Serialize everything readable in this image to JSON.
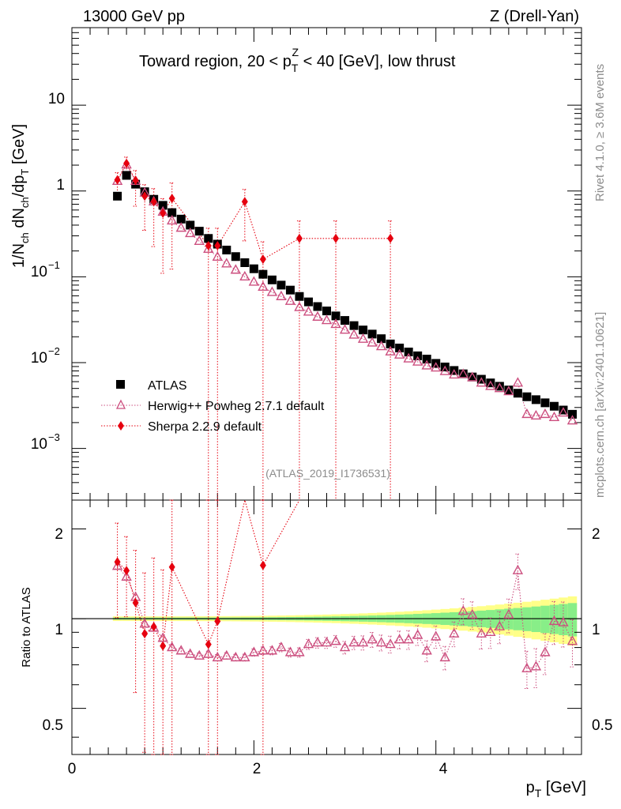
{
  "header": {
    "left": "13000 GeV pp",
    "right": "Z (Drell-Yan)"
  },
  "side_labels": {
    "rivet": "Rivet 4.1.0, ≥ 3.6M events",
    "mcplots": "mcplots.cern.ch [arXiv:2401.10621]"
  },
  "colors": {
    "atlas": "#000000",
    "herwig": "#cc4f7f",
    "sherpa": "#e6000f",
    "band_inner": "#88ee88",
    "band_outer": "#ffff88",
    "grey_text": "#8c8c8c"
  },
  "chart_data": [
    {
      "type": "scatter",
      "panel": "main",
      "title": "Toward region, 20 < pTZ < 40 [GeV], low thrust",
      "title_parts": {
        "pre": "Toward region, 20 < p",
        "sub": "T",
        "sup": "Z",
        "post": " < 40 [GeV], low thrust"
      },
      "ylabel": "1/Nch dNch/dpT [GeV]",
      "ylabel_parts": {
        "a": "1/N",
        "a_sub": "ch",
        "b": " dN",
        "b_sub": "ch",
        "c": "/dp",
        "c_sub": "T",
        "d": " [GeV]"
      },
      "yscale": "log",
      "ylim": [
        0.00025,
        80
      ],
      "xlim": [
        0,
        5.6
      ],
      "ytick_labels": [
        {
          "value": 10,
          "base": "10",
          "exp": ""
        },
        {
          "value": 1,
          "base": "1",
          "exp": ""
        },
        {
          "value": 0.1,
          "base": "10",
          "exp": "−1"
        },
        {
          "value": 0.01,
          "base": "10",
          "exp": "−2"
        },
        {
          "value": 0.001,
          "base": "10",
          "exp": "−3"
        }
      ],
      "watermark": "(ATLAS_2019_I1736531)",
      "legend": [
        {
          "name": "ATLAS",
          "style": "square"
        },
        {
          "name": "Herwig++ Powheg 2.7.1 default",
          "style": "triangle"
        },
        {
          "name": "Sherpa 2.2.9 default",
          "style": "diamond"
        }
      ],
      "series": [
        {
          "name": "ATLAS",
          "x": [
            0.5,
            0.6,
            0.7,
            0.8,
            0.9,
            1.0,
            1.1,
            1.2,
            1.3,
            1.4,
            1.5,
            1.6,
            1.7,
            1.8,
            1.9,
            2.0,
            2.1,
            2.2,
            2.3,
            2.4,
            2.5,
            2.6,
            2.7,
            2.8,
            2.9,
            3.0,
            3.1,
            3.2,
            3.3,
            3.4,
            3.5,
            3.6,
            3.7,
            3.8,
            3.9,
            4.0,
            4.1,
            4.2,
            4.3,
            4.4,
            4.5,
            4.6,
            4.7,
            4.8,
            4.9,
            5.0,
            5.1,
            5.2,
            5.3,
            5.4,
            5.5
          ],
          "values": [
            0.87,
            1.52,
            1.2,
            0.98,
            0.8,
            0.68,
            0.56,
            0.47,
            0.4,
            0.34,
            0.28,
            0.24,
            0.205,
            0.172,
            0.146,
            0.124,
            0.107,
            0.092,
            0.08,
            0.07,
            0.059,
            0.051,
            0.045,
            0.04,
            0.035,
            0.031,
            0.027,
            0.024,
            0.0215,
            0.019,
            0.0165,
            0.0148,
            0.0133,
            0.012,
            0.011,
            0.0098,
            0.0089,
            0.0081,
            0.0074,
            0.0068,
            0.0064,
            0.0058,
            0.0053,
            0.0048,
            0.0044,
            0.004,
            0.0037,
            0.0034,
            0.0031,
            0.0028,
            0.0025
          ]
        },
        {
          "name": "Herwig++ Powheg 2.7.1 default",
          "x": [
            0.5,
            0.6,
            0.7,
            0.8,
            0.9,
            1.0,
            1.1,
            1.2,
            1.3,
            1.4,
            1.5,
            1.6,
            1.7,
            1.8,
            1.9,
            2.0,
            2.1,
            2.2,
            2.3,
            2.4,
            2.5,
            2.6,
            2.7,
            2.8,
            2.9,
            3.0,
            3.1,
            3.2,
            3.3,
            3.4,
            3.5,
            3.6,
            3.7,
            3.8,
            3.9,
            4.0,
            4.1,
            4.2,
            4.3,
            4.4,
            4.5,
            4.6,
            4.7,
            4.8,
            4.9,
            5.0,
            5.1,
            5.2,
            5.3,
            5.4,
            5.5
          ],
          "values": [
            1.3,
            2.02,
            1.3,
            0.95,
            0.75,
            0.57,
            0.45,
            0.37,
            0.32,
            0.26,
            0.21,
            0.17,
            0.142,
            0.12,
            0.1,
            0.087,
            0.076,
            0.066,
            0.059,
            0.052,
            0.044,
            0.039,
            0.034,
            0.031,
            0.028,
            0.024,
            0.021,
            0.0188,
            0.017,
            0.0154,
            0.0134,
            0.0123,
            0.0111,
            0.0102,
            0.0092,
            0.0087,
            0.0079,
            0.0072,
            0.0073,
            0.0067,
            0.0058,
            0.0053,
            0.005,
            0.0046,
            0.0058,
            0.0025,
            0.0024,
            0.0025,
            0.0023,
            0.0026,
            0.0021
          ]
        },
        {
          "name": "Sherpa 2.2.9 default",
          "x": [
            0.5,
            0.6,
            0.7,
            0.8,
            0.9,
            1.0,
            1.1,
            1.5,
            1.6,
            1.9,
            2.1,
            2.5,
            2.9,
            3.5
          ],
          "values": [
            1.35,
            2.1,
            1.33,
            0.87,
            0.75,
            0.55,
            0.82,
            0.23,
            0.23,
            0.75,
            0.16,
            0.28,
            0.28,
            0.28
          ]
        }
      ]
    },
    {
      "type": "scatter",
      "panel": "ratio",
      "ylabel": "Ratio to ATLAS",
      "xlabel": "pT [GeV]",
      "xlabel_parts": {
        "main": "p",
        "sub": "T",
        "unit": " [GeV]"
      },
      "yscale": "log",
      "ylim": [
        0.35,
        2.5
      ],
      "xlim": [
        0,
        5.6
      ],
      "ytick_labels": [
        {
          "value": 2,
          "label": "2"
        },
        {
          "value": 1,
          "label": "1"
        },
        {
          "value": 0.5,
          "label": "0.5"
        }
      ],
      "xtick_labels": [
        {
          "value": 0,
          "label": "0"
        },
        {
          "value": 2,
          "label": "2"
        },
        {
          "value": 4,
          "label": "4"
        }
      ],
      "series": [
        {
          "name": "Herwig++ Powheg 2.7.1 default",
          "x": [
            0.5,
            0.6,
            0.7,
            0.8,
            0.9,
            1.0,
            1.1,
            1.2,
            1.3,
            1.4,
            1.5,
            1.6,
            1.7,
            1.8,
            1.9,
            2.0,
            2.1,
            2.2,
            2.3,
            2.4,
            2.5,
            2.6,
            2.7,
            2.8,
            2.9,
            3.0,
            3.1,
            3.2,
            3.3,
            3.4,
            3.5,
            3.6,
            3.7,
            3.8,
            3.9,
            4.0,
            4.1,
            4.2,
            4.3,
            4.4,
            4.5,
            4.6,
            4.7,
            4.8,
            4.9,
            5.0,
            5.1,
            5.2,
            5.3,
            5.4,
            5.5
          ],
          "values": [
            1.5,
            1.38,
            1.18,
            0.96,
            0.93,
            0.86,
            0.8,
            0.78,
            0.76,
            0.75,
            0.76,
            0.74,
            0.75,
            0.74,
            0.74,
            0.77,
            0.78,
            0.78,
            0.8,
            0.77,
            0.77,
            0.82,
            0.83,
            0.83,
            0.84,
            0.8,
            0.83,
            0.83,
            0.85,
            0.83,
            0.82,
            0.85,
            0.85,
            0.88,
            0.78,
            0.87,
            0.74,
            0.89,
            1.06,
            1.03,
            0.89,
            0.9,
            0.94,
            1.03,
            1.45,
            0.68,
            0.69,
            0.77,
            0.98,
            0.97,
            0.84
          ]
        },
        {
          "name": "Sherpa 2.2.9 default",
          "x": [
            0.5,
            0.6,
            0.7,
            0.8,
            0.9,
            1.0,
            1.1,
            1.5,
            1.6,
            2.1
          ],
          "values": [
            1.55,
            1.45,
            1.13,
            0.89,
            0.94,
            0.81,
            1.49,
            0.82,
            0.98,
            1.51
          ]
        }
      ]
    }
  ]
}
